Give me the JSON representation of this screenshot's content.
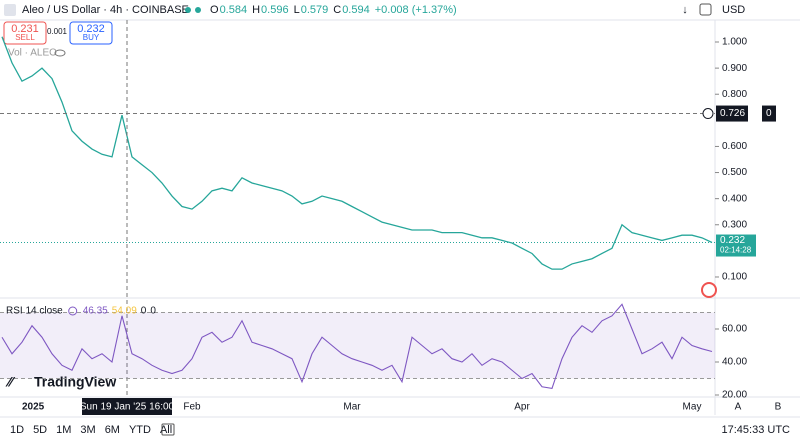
{
  "header": {
    "symbol": "Aleo / US Dollar · 4h · COINBASE",
    "ohlc": [
      [
        "O",
        "0.584"
      ],
      [
        "H",
        "0.596"
      ],
      [
        "L",
        "0.579"
      ],
      [
        "C",
        "0.594"
      ]
    ],
    "change": "+0.008 (+1.37%)",
    "currency": "USD"
  },
  "trade": {
    "sell": "0.231",
    "sell_label": "SELL",
    "spread": "0.001",
    "buy": "0.232",
    "buy_label": "BUY"
  },
  "volume_label": "Vol · ALEO",
  "chart_data": {
    "type": "line",
    "categories": [
      null,
      null,
      "2025",
      null,
      null,
      null,
      null,
      null,
      null,
      null,
      null,
      null,
      null,
      null,
      null,
      null,
      null,
      null,
      null,
      "Feb",
      null,
      null,
      null,
      null,
      null,
      null,
      null,
      null,
      null,
      null,
      null,
      null,
      null,
      null,
      null,
      "Mar",
      null,
      null,
      null,
      null,
      null,
      null,
      null,
      null,
      null,
      null,
      null,
      null,
      null,
      null,
      null,
      null,
      "Apr",
      null,
      null,
      null,
      null,
      null,
      null,
      null,
      null,
      null,
      null,
      null,
      null,
      null,
      null,
      null,
      null,
      "May",
      null,
      null
    ],
    "series": [
      {
        "name": "ALEO",
        "color": "#26a69a",
        "values": [
          1.02,
          0.92,
          0.85,
          0.87,
          0.9,
          0.86,
          0.77,
          0.66,
          0.62,
          0.59,
          0.57,
          0.56,
          0.72,
          0.56,
          0.53,
          0.5,
          0.46,
          0.41,
          0.37,
          0.36,
          0.39,
          0.43,
          0.44,
          0.43,
          0.48,
          0.46,
          0.45,
          0.44,
          0.43,
          0.41,
          0.38,
          0.39,
          0.41,
          0.4,
          0.39,
          0.37,
          0.35,
          0.33,
          0.31,
          0.3,
          0.29,
          0.28,
          0.28,
          0.28,
          0.27,
          0.27,
          0.27,
          0.26,
          0.25,
          0.25,
          0.24,
          0.23,
          0.21,
          0.19,
          0.15,
          0.13,
          0.13,
          0.15,
          0.16,
          0.17,
          0.19,
          0.21,
          0.3,
          0.27,
          0.26,
          0.25,
          0.24,
          0.25,
          0.26,
          0.26,
          0.25,
          0.232
        ]
      }
    ],
    "ylim": [
      0.0195,
      1.0843
    ],
    "yticks": [
      {
        "value": 1.0,
        "label": "1.000"
      },
      {
        "value": 0.9,
        "label": "0.900"
      },
      {
        "value": 0.8,
        "label": "0.800"
      },
      {
        "value": 0.6,
        "label": "0.600"
      },
      {
        "value": 0.5,
        "label": "0.500"
      },
      {
        "value": 0.4,
        "label": "0.400"
      },
      {
        "value": 0.3,
        "label": "0.300"
      },
      {
        "value": 0.1,
        "label": "0.100"
      }
    ],
    "crosshair": {
      "value": 0.726,
      "label": "0.726",
      "date": "Sun 19 Jan '25 16:00",
      "extra": "0"
    },
    "countdown": "02:14:28"
  },
  "rsi": {
    "title": "RSI 14 close",
    "color": "#7e57c2",
    "ma": "54.09",
    "extra": [
      "0",
      "0"
    ],
    "values": [
      55,
      45,
      52,
      62,
      55,
      45,
      38,
      35,
      48,
      42,
      45,
      40,
      68,
      45,
      42,
      38,
      35,
      33,
      35,
      42,
      55,
      58,
      52,
      55,
      65,
      52,
      50,
      48,
      45,
      42,
      28,
      45,
      55,
      50,
      45,
      42,
      40,
      38,
      35,
      38,
      28,
      55,
      50,
      45,
      48,
      42,
      40,
      45,
      38,
      42,
      40,
      35,
      30,
      33,
      25,
      24,
      42,
      55,
      62,
      58,
      65,
      68,
      75,
      60,
      45,
      48,
      52,
      42,
      55,
      50,
      48,
      46.35
    ],
    "ylim": [
      20,
      78.8
    ],
    "band": [
      30,
      70
    ],
    "yticks": [
      {
        "value": 60,
        "label": "60.00"
      },
      {
        "value": 40,
        "label": "40.00"
      },
      {
        "value": 20,
        "label": "20.00"
      }
    ]
  },
  "scale_buttons": [
    "A",
    "B"
  ],
  "logo": "TradingView",
  "timeframes": [
    "1D",
    "5D",
    "1M",
    "3M",
    "6M",
    "YTD",
    "All"
  ],
  "clock": "17:45:33 UTC"
}
